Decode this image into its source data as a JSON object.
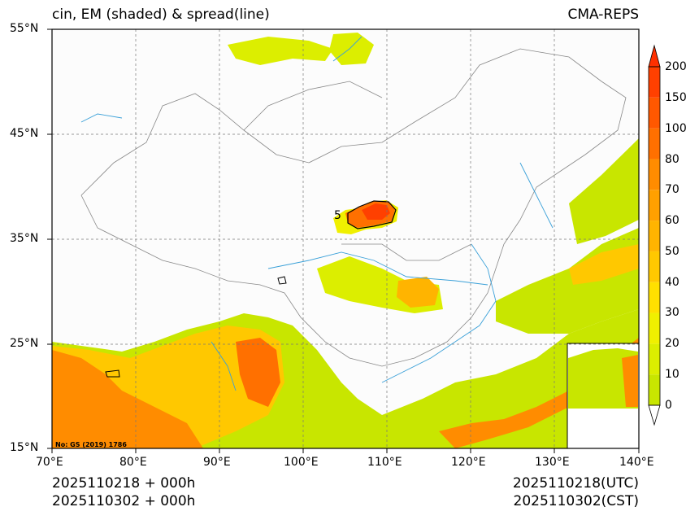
{
  "header": {
    "title_left": "cin, EM (shaded) & spread(line)",
    "title_right": "CMA-REPS"
  },
  "axes": {
    "lat_labels": [
      "55°N",
      "45°N",
      "35°N",
      "25°N",
      "15°N"
    ],
    "lon_labels": [
      "70°E",
      "80°E",
      "90°E",
      "100°E",
      "110°E",
      "120°E",
      "130°E",
      "140°E"
    ]
  },
  "colorbar": {
    "levels": [
      "0",
      "10",
      "20",
      "30",
      "40",
      "50",
      "60",
      "70",
      "80",
      "100",
      "150",
      "200"
    ],
    "colors": [
      "#c8e600",
      "#dcee00",
      "#f0f000",
      "#ffe000",
      "#ffc800",
      "#ffb400",
      "#ffa000",
      "#ff8c00",
      "#ff7000",
      "#ff5800",
      "#ff4000"
    ],
    "over_color": "#ff3000",
    "under_color": "#ffffff"
  },
  "map": {
    "watermark": "No: GS (2019) 1786",
    "contour_label": "5"
  },
  "footer": {
    "left_line1": "2025110218  +  000h",
    "left_line2": "2025110302  +  000h",
    "right_line1": "2025110218(UTC)",
    "right_line2": "2025110302(CST)"
  }
}
